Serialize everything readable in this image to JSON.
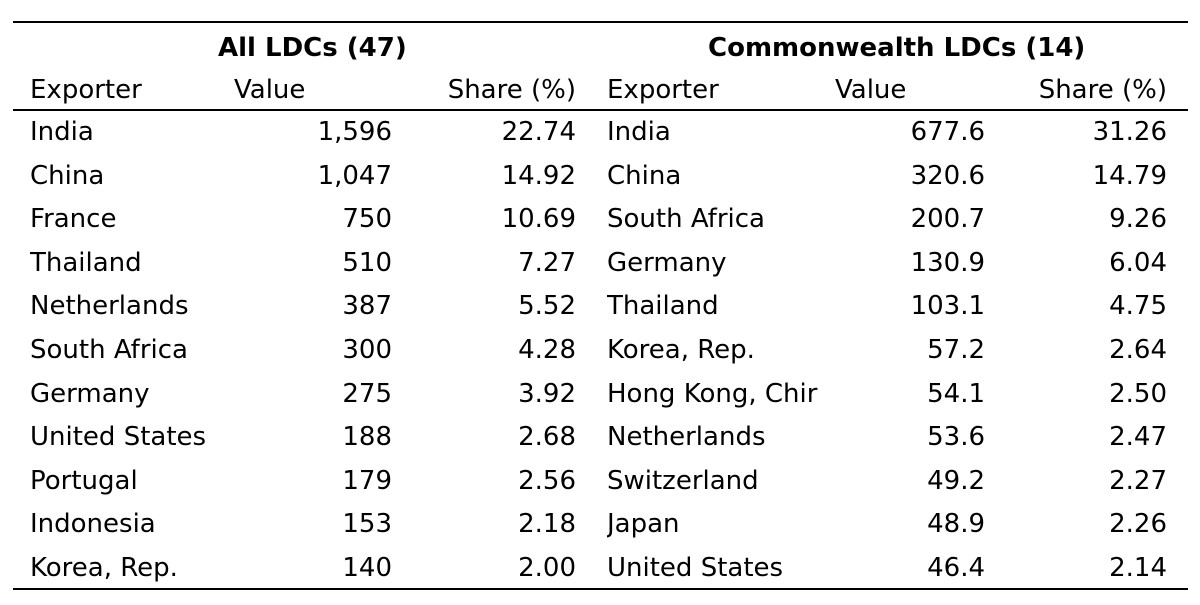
{
  "table": {
    "group_left": "All LDCs (47)",
    "group_right": "Commonwealth LDCs (14)",
    "columns": {
      "exporter": "Exporter",
      "value": "Value",
      "share": "Share (%)"
    },
    "left_rows": [
      {
        "exporter": "India",
        "value": "1,596",
        "share": "22.74"
      },
      {
        "exporter": "China",
        "value": "1,047",
        "share": "14.92"
      },
      {
        "exporter": "France",
        "value": "750",
        "share": "10.69"
      },
      {
        "exporter": "Thailand",
        "value": "510",
        "share": "7.27"
      },
      {
        "exporter": "Netherlands",
        "value": "387",
        "share": "5.52"
      },
      {
        "exporter": "South Africa",
        "value": "300",
        "share": "4.28"
      },
      {
        "exporter": "Germany",
        "value": "275",
        "share": "3.92"
      },
      {
        "exporter": "United States",
        "value": "188",
        "share": "2.68"
      },
      {
        "exporter": "Portugal",
        "value": "179",
        "share": "2.56"
      },
      {
        "exporter": "Indonesia",
        "value": "153",
        "share": "2.18"
      },
      {
        "exporter": "Korea, Rep.",
        "value": "140",
        "share": "2.00"
      }
    ],
    "right_rows": [
      {
        "exporter": "India",
        "value": "677.6",
        "share": "31.26"
      },
      {
        "exporter": "China",
        "value": "320.6",
        "share": "14.79"
      },
      {
        "exporter": "South Africa",
        "value": "200.7",
        "share": "9.26"
      },
      {
        "exporter": "Germany",
        "value": "130.9",
        "share": "6.04"
      },
      {
        "exporter": "Thailand",
        "value": "103.1",
        "share": "4.75"
      },
      {
        "exporter": "Korea, Rep.",
        "value": "57.2",
        "share": "2.64"
      },
      {
        "exporter": "Hong Kong, Chir",
        "value": "54.1",
        "share": "2.50"
      },
      {
        "exporter": "Netherlands",
        "value": "53.6",
        "share": "2.47"
      },
      {
        "exporter": "Switzerland",
        "value": "49.2",
        "share": "2.27"
      },
      {
        "exporter": "Japan",
        "value": "48.9",
        "share": "2.26"
      },
      {
        "exporter": "United States",
        "value": "46.4",
        "share": "2.14"
      }
    ]
  }
}
